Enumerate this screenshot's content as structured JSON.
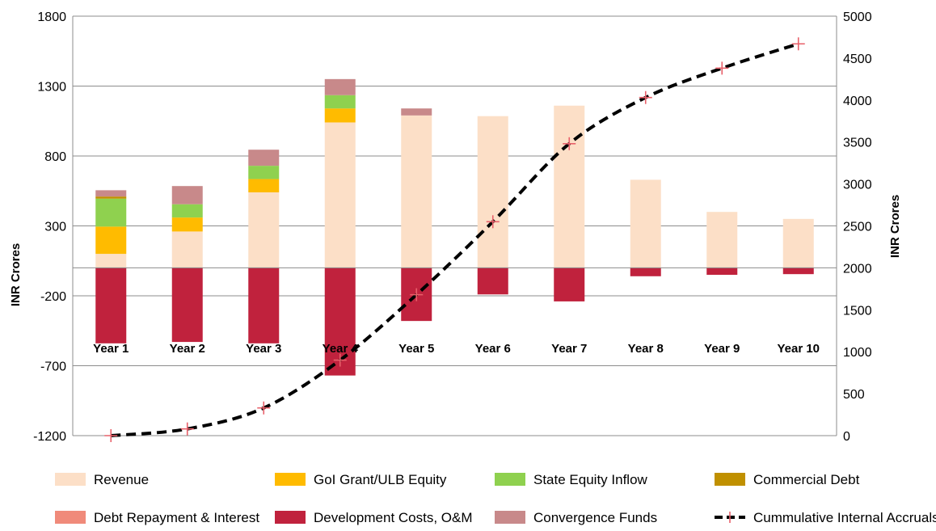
{
  "chart_data": {
    "type": "bar",
    "subtype": "stacked bar with line on secondary axis",
    "categories": [
      "Year 1",
      "Year 2",
      "Year 3",
      "Year 4",
      "Year 5",
      "Year 6",
      "Year 7",
      "Year 8",
      "Year 9",
      "Year 10"
    ],
    "series": [
      {
        "name": "Revenue",
        "type": "bar",
        "axis": "left",
        "color": "#FCDFC7",
        "values": [
          100,
          260,
          540,
          1040,
          1090,
          1085,
          1160,
          630,
          400,
          350
        ]
      },
      {
        "name": "GoI Grant/ULB Equity",
        "type": "bar",
        "axis": "left",
        "color": "#FFBB00",
        "values": [
          195,
          100,
          95,
          100,
          0,
          0,
          0,
          0,
          0,
          0
        ]
      },
      {
        "name": "State Equity Inflow",
        "type": "bar",
        "axis": "left",
        "color": "#8FD14F",
        "values": [
          200,
          95,
          95,
          95,
          0,
          0,
          0,
          0,
          0,
          0
        ]
      },
      {
        "name": "Commercial Debt",
        "type": "bar",
        "axis": "left",
        "color": "#C09000",
        "values": [
          15,
          0,
          0,
          0,
          0,
          0,
          0,
          0,
          0,
          0
        ]
      },
      {
        "name": "Debt Repayment & Interest",
        "type": "bar",
        "axis": "left",
        "color": "#F08A7A",
        "values": [
          0,
          0,
          0,
          0,
          0,
          0,
          0,
          0,
          0,
          0
        ]
      },
      {
        "name": "Development Costs, O&M",
        "type": "bar",
        "axis": "left",
        "color": "#C0223D",
        "values": [
          -540,
          -530,
          -540,
          -770,
          -380,
          -190,
          -240,
          -60,
          -50,
          -45
        ]
      },
      {
        "name": "Convergence Funds",
        "type": "bar",
        "axis": "left",
        "color": "#C8898A",
        "values": [
          45,
          130,
          115,
          115,
          50,
          0,
          0,
          0,
          0,
          0
        ]
      },
      {
        "name": "Cummulative Internal Accruals",
        "type": "line",
        "axis": "right",
        "color": "#000000",
        "marker_color": "#E8606A",
        "values": [
          0,
          80,
          330,
          900,
          1680,
          2550,
          3480,
          4030,
          4380,
          4670
        ]
      }
    ],
    "ylabel": "INR Crores",
    "y2label": "INR Crores",
    "ylim": [
      -1200,
      1800
    ],
    "y2lim": [
      0,
      5000
    ],
    "yticks": [
      "1800",
      "1300",
      "800",
      "300",
      "-200",
      "-700",
      "-1200"
    ],
    "y2ticks": [
      "5000",
      "4500",
      "4000",
      "3500",
      "3000",
      "2500",
      "2000",
      "1500",
      "1000",
      "500",
      "0"
    ],
    "legend_position": "bottom",
    "grid": "horizontal"
  }
}
